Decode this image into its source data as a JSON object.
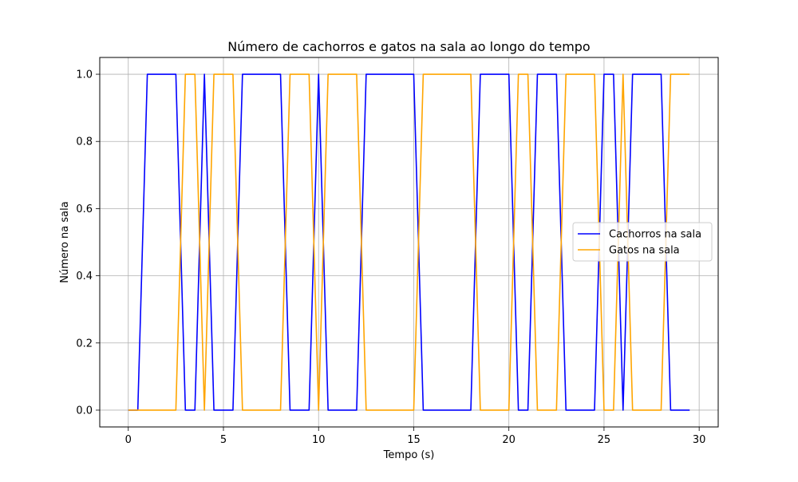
{
  "chart_data": {
    "type": "line",
    "title": "Número de cachorros e gatos na sala ao longo do tempo",
    "xlabel": "Tempo (s)",
    "ylabel": "Número na sala",
    "xlim": [
      -1.5,
      31
    ],
    "ylim": [
      -0.05,
      1.05
    ],
    "xticks": [
      0,
      5,
      10,
      15,
      20,
      25,
      30
    ],
    "xtick_labels": [
      "0",
      "5",
      "10",
      "15",
      "20",
      "25",
      "30"
    ],
    "yticks": [
      0.0,
      0.2,
      0.4,
      0.6,
      0.8,
      1.0
    ],
    "ytick_labels": [
      "0.0",
      "0.2",
      "0.4",
      "0.6",
      "0.8",
      "1.0"
    ],
    "grid": true,
    "legend_position": "center-right",
    "x": [
      0,
      0.5,
      1,
      1.5,
      2,
      2.5,
      3,
      3.5,
      4,
      4.5,
      5,
      5.5,
      6,
      6.5,
      7,
      7.5,
      8,
      8.5,
      9,
      9.5,
      10,
      10.5,
      11,
      11.5,
      12,
      12.5,
      13,
      13.5,
      14,
      14.5,
      15,
      15.5,
      16,
      16.5,
      17,
      17.5,
      18,
      18.5,
      19,
      19.5,
      20,
      20.5,
      21,
      21.5,
      22,
      22.5,
      23,
      23.5,
      24,
      24.5,
      25,
      25.5,
      26,
      26.5,
      27,
      27.5,
      28,
      28.5,
      29,
      29.5
    ],
    "series": [
      {
        "name": "Cachorros na sala",
        "color": "#0000ff",
        "values": [
          0,
          0,
          1,
          1,
          1,
          1,
          0,
          0,
          1,
          0,
          0,
          0,
          1,
          1,
          1,
          1,
          1,
          0,
          0,
          0,
          1,
          0,
          0,
          0,
          0,
          1,
          1,
          1,
          1,
          1,
          1,
          0,
          0,
          0,
          0,
          0,
          0,
          1,
          1,
          1,
          1,
          0,
          0,
          1,
          1,
          1,
          0,
          0,
          0,
          0,
          1,
          1,
          0,
          1,
          1,
          1,
          1,
          0,
          0,
          0
        ]
      },
      {
        "name": "Gatos na sala",
        "color": "#ffa500",
        "values": [
          0,
          0,
          0,
          0,
          0,
          0,
          1,
          1,
          0,
          1,
          1,
          1,
          0,
          0,
          0,
          0,
          0,
          1,
          1,
          1,
          0,
          1,
          1,
          1,
          1,
          0,
          0,
          0,
          0,
          0,
          0,
          1,
          1,
          1,
          1,
          1,
          1,
          0,
          0,
          0,
          0,
          1,
          1,
          0,
          0,
          0,
          1,
          1,
          1,
          1,
          0,
          0,
          1,
          0,
          0,
          0,
          0,
          1,
          1,
          1
        ]
      }
    ]
  }
}
